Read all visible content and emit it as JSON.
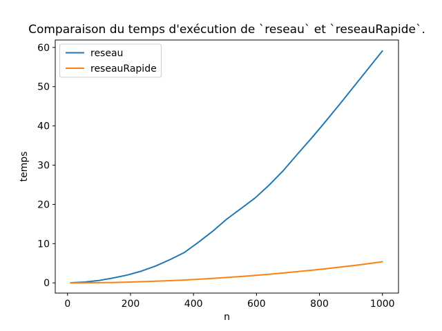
{
  "chart_data": {
    "type": "line",
    "title": "Comparaison du temps d'exécution de `reseau` et `reseauRapide`.",
    "xlabel": "n",
    "ylabel": "temps",
    "x": [
      10,
      55,
      100,
      145,
      190,
      235,
      280,
      325,
      370,
      415,
      460,
      505,
      550,
      595,
      640,
      685,
      730,
      775,
      820,
      865,
      910,
      955,
      1000
    ],
    "series": [
      {
        "name": "reseau",
        "color": "#1f77b4",
        "values": [
          0.03,
          0.22,
          0.62,
          1.25,
          2.0,
          3.0,
          4.3,
          5.9,
          7.7,
          10.3,
          13.1,
          16.2,
          18.9,
          21.6,
          24.9,
          28.6,
          32.8,
          36.9,
          41.2,
          45.6,
          50.1,
          54.6,
          59.1
        ]
      },
      {
        "name": "reseauRapide",
        "color": "#ff7f0e",
        "values": [
          0.0,
          0.02,
          0.05,
          0.11,
          0.19,
          0.3,
          0.42,
          0.57,
          0.73,
          0.92,
          1.14,
          1.37,
          1.62,
          1.9,
          2.2,
          2.52,
          2.86,
          3.22,
          3.6,
          4.0,
          4.43,
          4.88,
          5.4
        ]
      }
    ],
    "xticks": [
      0,
      200,
      400,
      600,
      800,
      1000
    ],
    "yticks": [
      0,
      10,
      20,
      30,
      40,
      50,
      60
    ],
    "xlim": [
      -39,
      1051
    ],
    "ylim": [
      -2.6,
      61.9
    ],
    "grid": false,
    "legend_position": "upper left",
    "colors": {
      "background": "#ffffff",
      "spine": "#000000",
      "text": "#000000",
      "legend_border": "#cccccc",
      "legend_background": "#ffffff"
    }
  }
}
